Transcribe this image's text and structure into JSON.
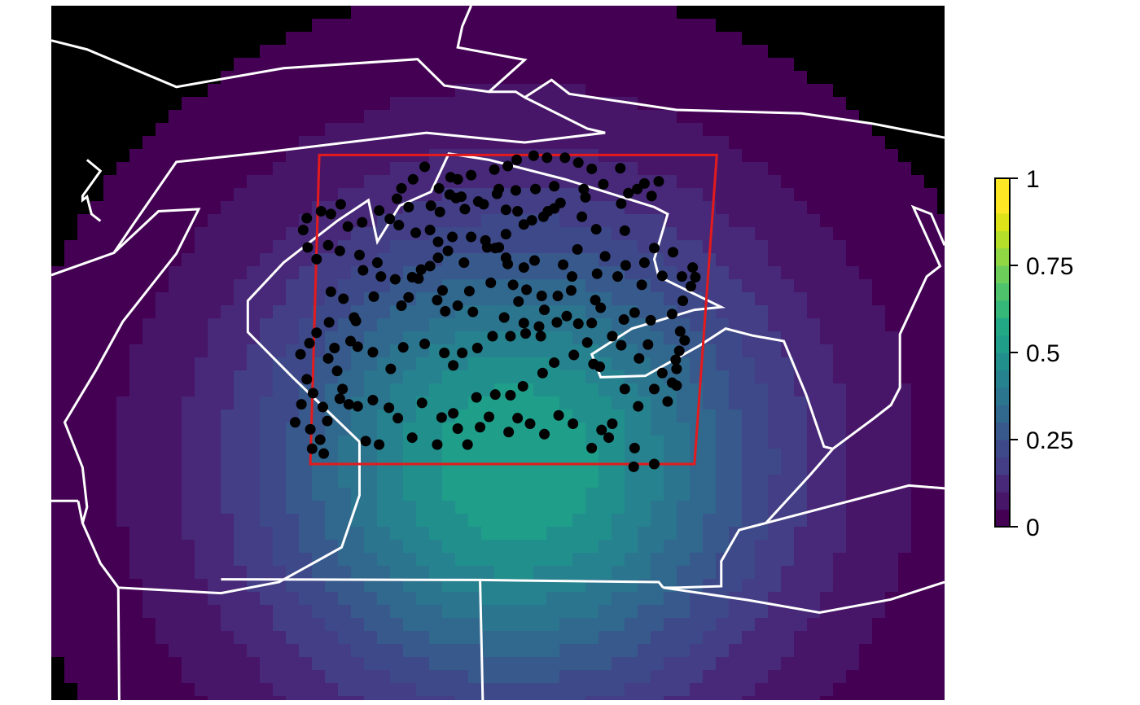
{
  "chart_data": {
    "type": "heatmap",
    "title": "",
    "xlabel": "",
    "ylabel": "",
    "grid": false,
    "legend": "right",
    "colormap": "viridis",
    "colorbar": {
      "range": [
        0,
        1
      ],
      "ticks": [
        0,
        0.25,
        0.5,
        0.75,
        1
      ],
      "tick_labels": [
        "0",
        "0.25",
        "0.5",
        "0.75",
        "1"
      ],
      "colors": [
        "#440154",
        "#481668",
        "#482878",
        "#433e85",
        "#3e4989",
        "#38598c",
        "#31688e",
        "#2b758e",
        "#26828e",
        "#21908d",
        "#1f9e89",
        "#22a884",
        "#35b779",
        "#4ec36b",
        "#6ccd5a",
        "#90d743",
        "#b5de2b",
        "#dde318",
        "#fde725",
        "#fde725"
      ]
    },
    "field": {
      "description_peak": 0.55,
      "peak_x": 0.52,
      "peak_y": 0.66,
      "background": "#000000"
    },
    "boundary_color": "#ffffff",
    "study_area": {
      "color": "#e41a1c",
      "corners": [
        [
          0.29,
          0.66
        ],
        [
          0.72,
          0.66
        ],
        [
          0.745,
          0.215
        ],
        [
          0.3,
          0.215
        ]
      ]
    },
    "points": {
      "color": "#000000",
      "xy": [
        [
          0.292,
          0.638
        ],
        [
          0.305,
          0.645
        ],
        [
          0.301,
          0.625
        ],
        [
          0.304,
          0.578
        ],
        [
          0.326,
          0.552
        ],
        [
          0.32,
          0.526
        ],
        [
          0.31,
          0.508
        ],
        [
          0.317,
          0.493
        ],
        [
          0.333,
          0.574
        ],
        [
          0.352,
          0.627
        ],
        [
          0.367,
          0.632
        ],
        [
          0.404,
          0.622
        ],
        [
          0.432,
          0.632
        ],
        [
          0.455,
          0.609
        ],
        [
          0.466,
          0.632
        ],
        [
          0.48,
          0.607
        ],
        [
          0.49,
          0.592
        ],
        [
          0.512,
          0.614
        ],
        [
          0.522,
          0.594
        ],
        [
          0.536,
          0.602
        ],
        [
          0.552,
          0.617
        ],
        [
          0.568,
          0.59
        ],
        [
          0.584,
          0.602
        ],
        [
          0.605,
          0.637
        ],
        [
          0.616,
          0.611
        ],
        [
          0.624,
          0.622
        ],
        [
          0.628,
          0.602
        ],
        [
          0.653,
          0.637
        ],
        [
          0.652,
          0.664
        ],
        [
          0.675,
          0.66
        ],
        [
          0.657,
          0.577
        ],
        [
          0.69,
          0.57
        ],
        [
          0.695,
          0.543
        ],
        [
          0.684,
          0.529
        ],
        [
          0.658,
          0.508
        ],
        [
          0.6,
          0.485
        ],
        [
          0.59,
          0.458
        ],
        [
          0.546,
          0.462
        ],
        [
          0.529,
          0.457
        ],
        [
          0.507,
          0.449
        ],
        [
          0.472,
          0.441
        ],
        [
          0.441,
          0.44
        ],
        [
          0.392,
          0.432
        ],
        [
          0.361,
          0.419
        ],
        [
          0.339,
          0.449
        ],
        [
          0.341,
          0.454
        ],
        [
          0.311,
          0.456
        ],
        [
          0.313,
          0.412
        ],
        [
          0.327,
          0.422
        ],
        [
          0.369,
          0.39
        ],
        [
          0.411,
          0.393
        ],
        [
          0.414,
          0.38
        ],
        [
          0.424,
          0.375
        ],
        [
          0.462,
          0.37
        ],
        [
          0.509,
          0.363
        ],
        [
          0.529,
          0.377
        ],
        [
          0.541,
          0.367
        ],
        [
          0.573,
          0.373
        ],
        [
          0.589,
          0.351
        ],
        [
          0.62,
          0.361
        ],
        [
          0.643,
          0.374
        ],
        [
          0.664,
          0.37
        ],
        [
          0.696,
          0.355
        ],
        [
          0.675,
          0.349
        ],
        [
          0.642,
          0.324
        ],
        [
          0.61,
          0.322
        ],
        [
          0.594,
          0.304
        ],
        [
          0.57,
          0.284
        ],
        [
          0.551,
          0.304
        ],
        [
          0.529,
          0.315
        ],
        [
          0.509,
          0.329
        ],
        [
          0.501,
          0.348
        ],
        [
          0.488,
          0.348
        ],
        [
          0.47,
          0.333
        ],
        [
          0.449,
          0.333
        ],
        [
          0.433,
          0.34
        ],
        [
          0.424,
          0.323
        ],
        [
          0.408,
          0.327
        ],
        [
          0.389,
          0.316
        ],
        [
          0.379,
          0.307
        ],
        [
          0.367,
          0.295
        ],
        [
          0.348,
          0.312
        ],
        [
          0.332,
          0.318
        ],
        [
          0.324,
          0.286
        ],
        [
          0.313,
          0.3
        ],
        [
          0.302,
          0.296
        ],
        [
          0.286,
          0.306
        ],
        [
          0.282,
          0.323
        ],
        [
          0.287,
          0.348
        ],
        [
          0.297,
          0.365
        ],
        [
          0.31,
          0.345
        ],
        [
          0.323,
          0.353
        ],
        [
          0.345,
          0.359
        ],
        [
          0.349,
          0.381
        ],
        [
          0.365,
          0.37
        ],
        [
          0.385,
          0.394
        ],
        [
          0.404,
          0.391
        ],
        [
          0.4,
          0.42
        ],
        [
          0.432,
          0.424
        ],
        [
          0.438,
          0.41
        ],
        [
          0.455,
          0.432
        ],
        [
          0.468,
          0.411
        ],
        [
          0.492,
          0.399
        ],
        [
          0.517,
          0.402
        ],
        [
          0.532,
          0.409
        ],
        [
          0.549,
          0.418
        ],
        [
          0.567,
          0.418
        ],
        [
          0.582,
          0.41
        ],
        [
          0.583,
          0.39
        ],
        [
          0.611,
          0.386
        ],
        [
          0.634,
          0.39
        ],
        [
          0.661,
          0.402
        ],
        [
          0.684,
          0.389
        ],
        [
          0.706,
          0.39
        ],
        [
          0.718,
          0.377
        ],
        [
          0.721,
          0.391
        ],
        [
          0.716,
          0.404
        ],
        [
          0.707,
          0.425
        ],
        [
          0.695,
          0.444
        ],
        [
          0.671,
          0.453
        ],
        [
          0.653,
          0.442
        ],
        [
          0.641,
          0.452
        ],
        [
          0.615,
          0.435
        ],
        [
          0.609,
          0.424
        ],
        [
          0.577,
          0.447
        ],
        [
          0.566,
          0.456
        ],
        [
          0.548,
          0.476
        ],
        [
          0.531,
          0.472
        ],
        [
          0.514,
          0.476
        ],
        [
          0.494,
          0.476
        ],
        [
          0.477,
          0.493
        ],
        [
          0.46,
          0.5
        ],
        [
          0.45,
          0.518
        ],
        [
          0.44,
          0.5
        ],
        [
          0.418,
          0.487
        ],
        [
          0.394,
          0.492
        ],
        [
          0.38,
          0.523
        ],
        [
          0.36,
          0.499
        ],
        [
          0.343,
          0.491
        ],
        [
          0.335,
          0.483
        ],
        [
          0.297,
          0.471
        ],
        [
          0.289,
          0.486
        ],
        [
          0.279,
          0.502
        ],
        [
          0.286,
          0.538
        ],
        [
          0.293,
          0.558
        ],
        [
          0.28,
          0.574
        ],
        [
          0.273,
          0.6
        ],
        [
          0.29,
          0.61
        ],
        [
          0.309,
          0.598
        ],
        [
          0.323,
          0.566
        ],
        [
          0.343,
          0.577
        ],
        [
          0.36,
          0.568
        ],
        [
          0.378,
          0.579
        ],
        [
          0.388,
          0.594
        ],
        [
          0.415,
          0.572
        ],
        [
          0.437,
          0.593
        ],
        [
          0.45,
          0.587
        ],
        [
          0.476,
          0.564
        ],
        [
          0.497,
          0.56
        ],
        [
          0.514,
          0.561
        ],
        [
          0.528,
          0.548
        ],
        [
          0.55,
          0.529
        ],
        [
          0.563,
          0.514
        ],
        [
          0.585,
          0.503
        ],
        [
          0.607,
          0.516
        ],
        [
          0.614,
          0.52
        ],
        [
          0.642,
          0.552
        ],
        [
          0.675,
          0.552
        ],
        [
          0.7,
          0.547
        ],
        [
          0.7,
          0.523
        ],
        [
          0.699,
          0.51
        ],
        [
          0.703,
          0.497
        ],
        [
          0.709,
          0.482
        ],
        [
          0.704,
          0.469
        ],
        [
          0.668,
          0.488
        ],
        [
          0.638,
          0.489
        ],
        [
          0.628,
          0.476
        ],
        [
          0.605,
          0.457
        ],
        [
          0.552,
          0.438
        ],
        [
          0.523,
          0.426
        ],
        [
          0.511,
          0.372
        ],
        [
          0.497,
          0.349
        ],
        [
          0.486,
          0.338
        ],
        [
          0.444,
          0.353
        ],
        [
          0.433,
          0.363
        ],
        [
          0.425,
          0.288
        ],
        [
          0.434,
          0.263
        ],
        [
          0.446,
          0.272
        ],
        [
          0.453,
          0.277
        ],
        [
          0.459,
          0.275
        ],
        [
          0.478,
          0.282
        ],
        [
          0.501,
          0.264
        ],
        [
          0.52,
          0.266
        ],
        [
          0.542,
          0.264
        ],
        [
          0.563,
          0.26
        ],
        [
          0.596,
          0.264
        ],
        [
          0.618,
          0.257
        ],
        [
          0.646,
          0.27
        ],
        [
          0.656,
          0.264
        ],
        [
          0.638,
          0.285
        ],
        [
          0.598,
          0.276
        ],
        [
          0.563,
          0.292
        ],
        [
          0.556,
          0.296
        ],
        [
          0.538,
          0.309
        ],
        [
          0.522,
          0.296
        ],
        [
          0.509,
          0.294
        ],
        [
          0.499,
          0.271
        ],
        [
          0.484,
          0.286
        ],
        [
          0.463,
          0.293
        ],
        [
          0.435,
          0.297
        ],
        [
          0.4,
          0.29
        ],
        [
          0.387,
          0.278
        ],
        [
          0.392,
          0.263
        ],
        [
          0.405,
          0.25
        ],
        [
          0.418,
          0.232
        ],
        [
          0.447,
          0.247
        ],
        [
          0.455,
          0.25
        ],
        [
          0.47,
          0.244
        ],
        [
          0.496,
          0.236
        ],
        [
          0.511,
          0.231
        ],
        [
          0.521,
          0.222
        ],
        [
          0.54,
          0.216
        ],
        [
          0.555,
          0.219
        ],
        [
          0.575,
          0.219
        ],
        [
          0.59,
          0.226
        ],
        [
          0.605,
          0.235
        ],
        [
          0.637,
          0.234
        ],
        [
          0.664,
          0.256
        ],
        [
          0.672,
          0.274
        ],
        [
          0.68,
          0.253
        ]
      ]
    }
  }
}
